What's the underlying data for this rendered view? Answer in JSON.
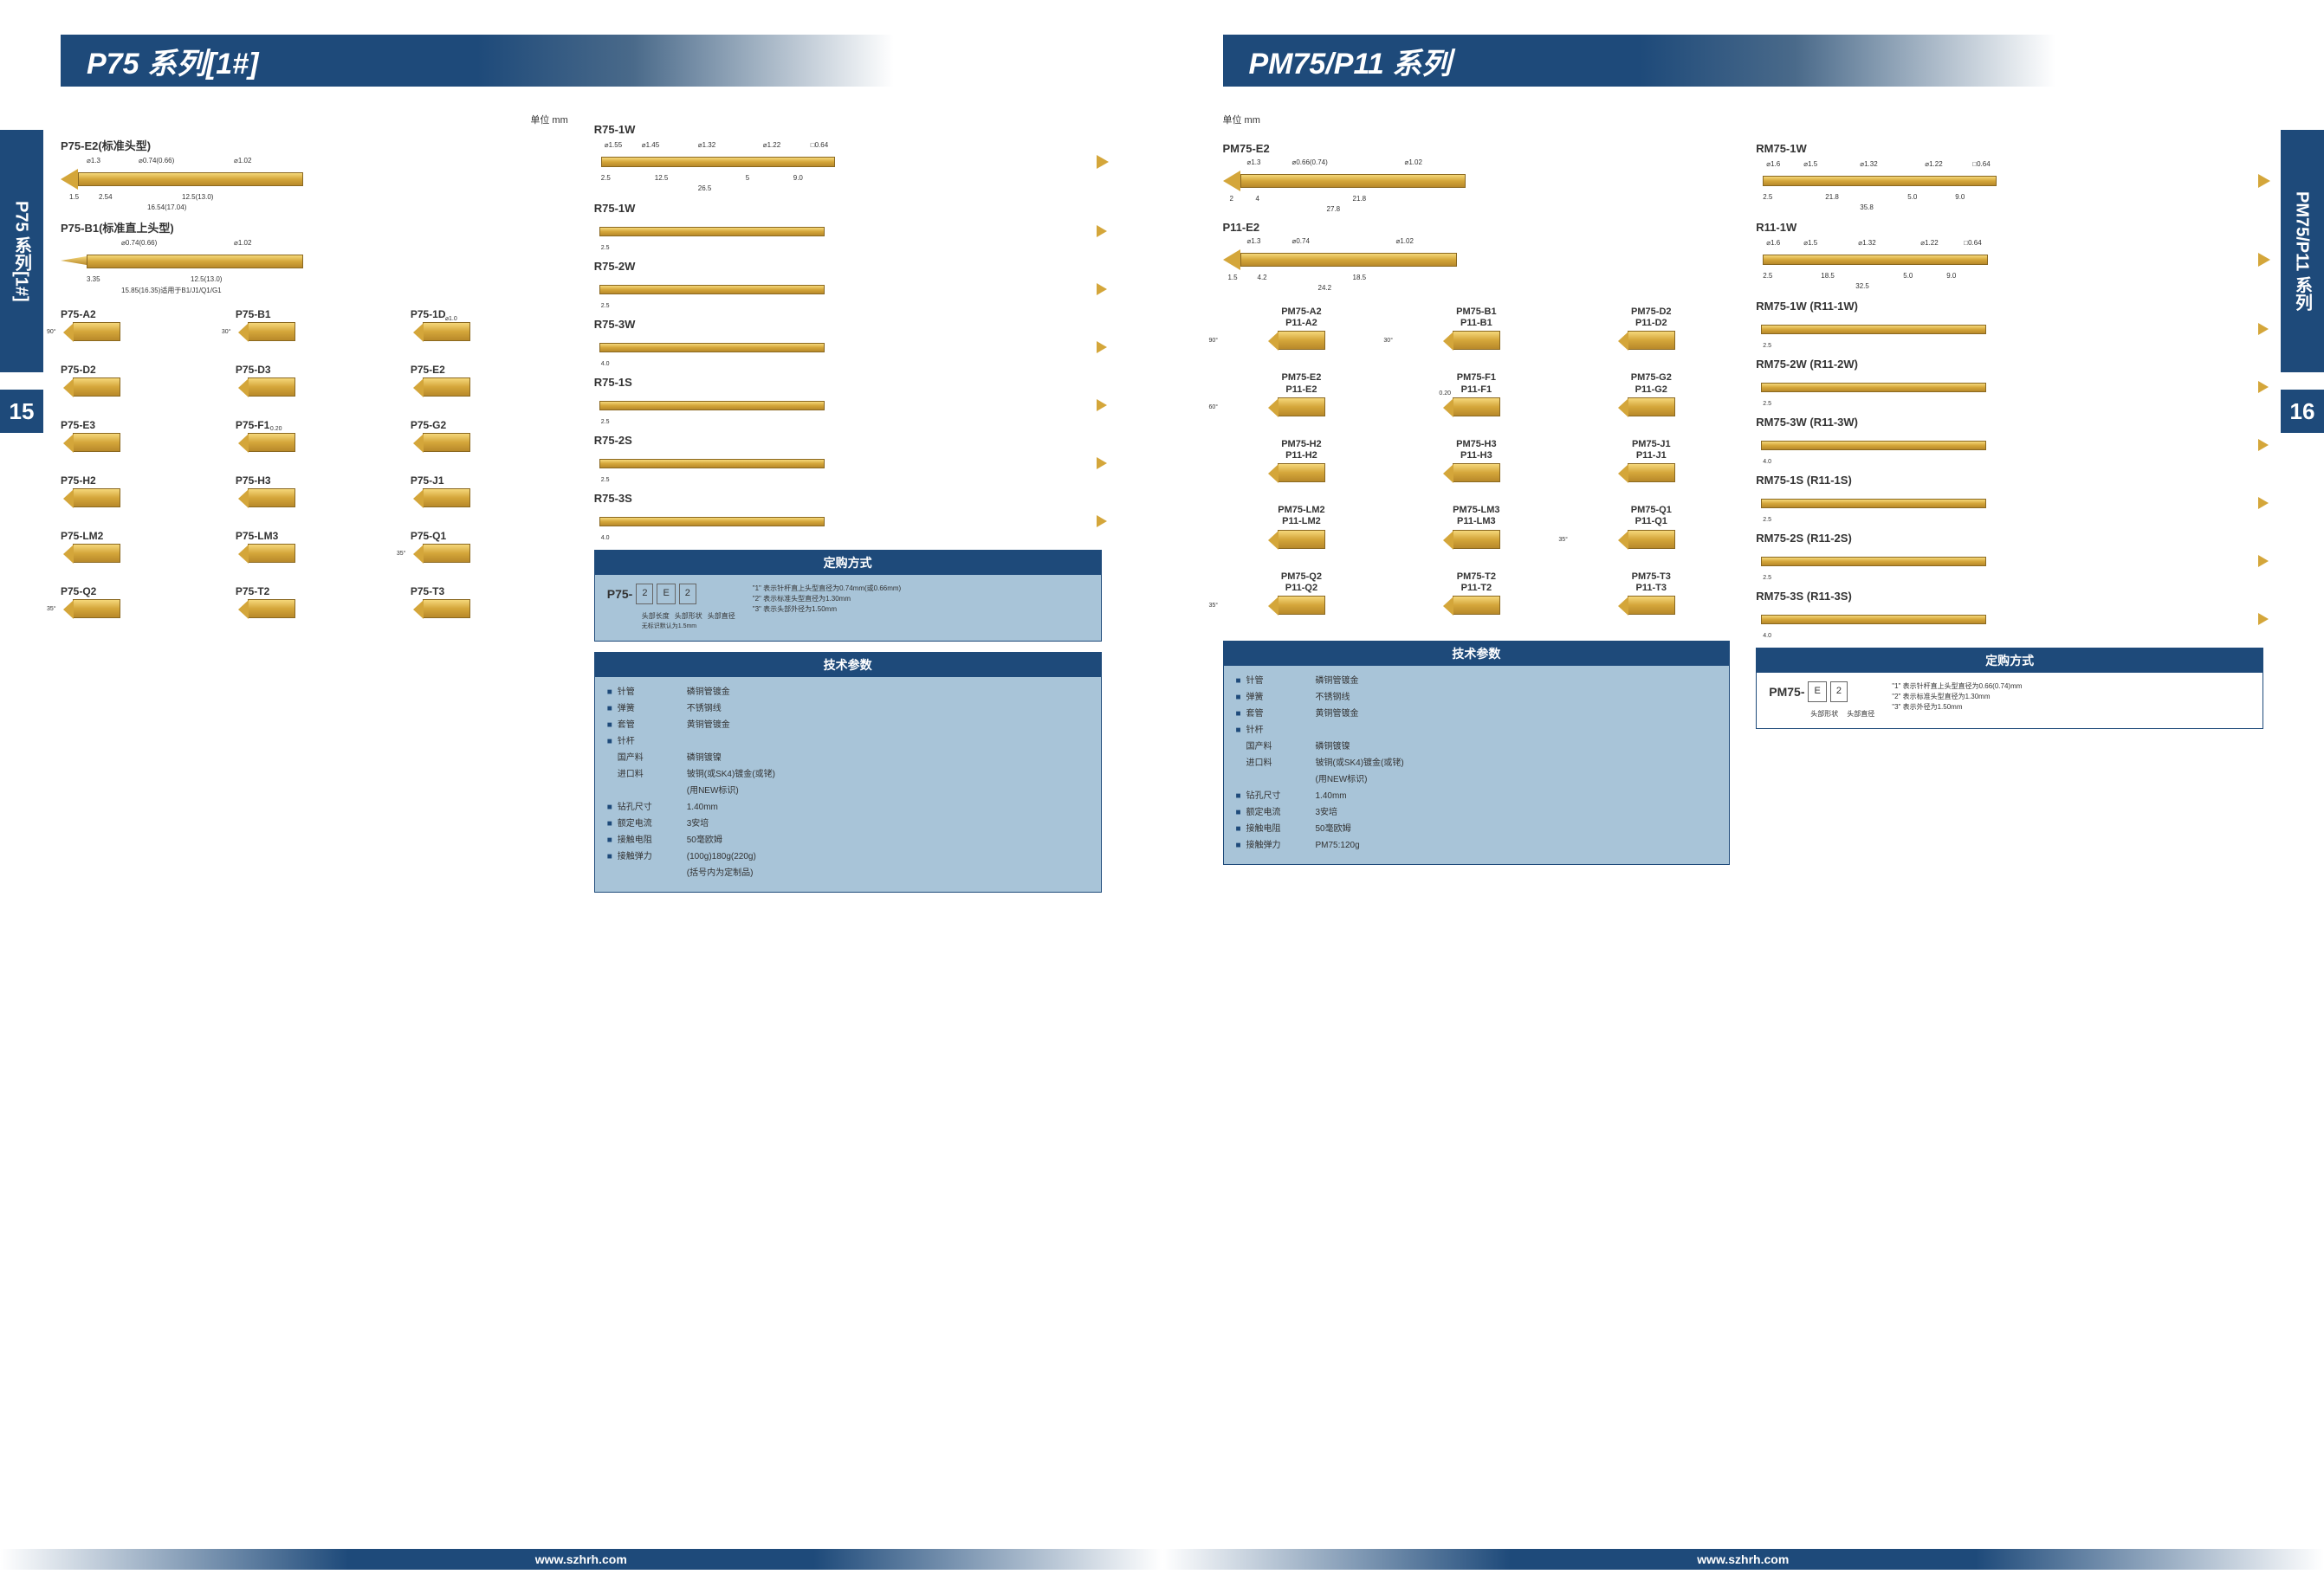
{
  "colors": {
    "primary": "#1e4a7a",
    "gold_light": "#f5d87a",
    "gold_mid": "#d4a63a",
    "gold_dark": "#b8892a",
    "gold_border": "#8a6820",
    "info_bg": "#a8c4d8"
  },
  "left": {
    "side_tab": "P75 系列[1#]",
    "page_num": "15",
    "banner": "P75 系列[1#]",
    "unit": "单位    mm",
    "main_probes": [
      {
        "label": "P75-E2(标准头型)",
        "dims": [
          "⌀1.3",
          "⌀0.74(0.66)",
          "⌀1.02",
          "1.5",
          "2.54",
          "12.5(13.0)",
          "16.54(17.04)"
        ]
      },
      {
        "label": "P75-B1(标准直上头型)",
        "dims": [
          "⌀0.74(0.66)",
          "⌀1.02",
          "3.35",
          "12.5(13.0)",
          "15.85(16.35)适用于B1/J1/Q1/G1"
        ]
      }
    ],
    "tips": [
      {
        "label": "P75-A2",
        "angle": "90°"
      },
      {
        "label": "P75-B1",
        "angle": "30°"
      },
      {
        "label": "P75-1D",
        "dim": "⌀1.0"
      },
      {
        "label": "P75-D2"
      },
      {
        "label": "P75-D3"
      },
      {
        "label": "P75-E2"
      },
      {
        "label": "P75-E3"
      },
      {
        "label": "P75-F1",
        "dim": "0.20"
      },
      {
        "label": "P75-G2"
      },
      {
        "label": "P75-H2"
      },
      {
        "label": "P75-H3"
      },
      {
        "label": "P75-J1"
      },
      {
        "label": "P75-LM2"
      },
      {
        "label": "P75-LM3"
      },
      {
        "label": "P75-Q1",
        "angle": "35°"
      },
      {
        "label": "P75-Q2",
        "angle": "35°"
      },
      {
        "label": "P75-T2"
      },
      {
        "label": "P75-T3"
      }
    ],
    "receptacles_full": {
      "label": "R75-1W",
      "dims": [
        "⌀1.55",
        "⌀1.45",
        "⌀1.32",
        "⌀1.22",
        "□0.64",
        "2.5",
        "12.5",
        "5",
        "9.0",
        "26.5"
      ]
    },
    "receptacles": [
      {
        "label": "R75-1W",
        "ext": "2.5"
      },
      {
        "label": "R75-2W",
        "ext": "2.5"
      },
      {
        "label": "R75-3W",
        "ext": "4.0"
      },
      {
        "label": "R75-1S",
        "ext": "2.5"
      },
      {
        "label": "R75-2S",
        "ext": "2.5"
      },
      {
        "label": "R75-3S",
        "ext": "4.0"
      }
    ],
    "order": {
      "title": "定购方式",
      "prefix": "P75-",
      "boxes": [
        "2",
        "E",
        "2"
      ],
      "sublabels": [
        "头部长度",
        "头部形状",
        "头部直径"
      ],
      "subnote": "无标识默认为1.5mm",
      "notes": [
        "\"1\" 表示针杆直上头型直径为0.74mm(或0.66mm)",
        "\"2\" 表示标准头型直径为1.30mm",
        "\"3\" 表示头部外径为1.50mm"
      ]
    },
    "specs": {
      "title": "技术参数",
      "rows": [
        {
          "k": "针管",
          "v": "磷铜管镀金"
        },
        {
          "k": "弹簧",
          "v": "不锈钢线"
        },
        {
          "k": "套管",
          "v": "黄铜管镀金"
        },
        {
          "k": "针杆",
          "v": ""
        },
        {
          "k": "  国产料",
          "v": "磷铜镀镍"
        },
        {
          "k": "  进口料",
          "v": "铍铜(或SK4)镀金(或铑)"
        },
        {
          "k": "",
          "v": "(用NEW标识)"
        },
        {
          "k": "钻孔尺寸",
          "v": "1.40mm"
        },
        {
          "k": "额定电流",
          "v": "3安培"
        },
        {
          "k": "接触电阻",
          "v": "50毫欧姆"
        },
        {
          "k": "接触弹力",
          "v": "(100g)180g(220g)"
        },
        {
          "k": "",
          "v": "(括号内为定制品)"
        }
      ]
    }
  },
  "right": {
    "side_tab": "PM75/P11 系列",
    "page_num": "16",
    "banner": "PM75/P11 系列",
    "unit": "单位    mm",
    "main_probes": [
      {
        "label": "PM75-E2",
        "dims": [
          "⌀1.3",
          "⌀0.66(0.74)",
          "⌀1.02",
          "2",
          "4",
          "21.8",
          "27.8"
        ]
      },
      {
        "label": "P11-E2",
        "dims": [
          "⌀1.3",
          "⌀0.74",
          "⌀1.02",
          "1.5",
          "4.2",
          "18.5",
          "24.2"
        ]
      }
    ],
    "receptacles_full": [
      {
        "label": "RM75-1W",
        "dims": [
          "⌀1.6",
          "⌀1.5",
          "⌀1.32",
          "⌀1.22",
          "□0.64",
          "2.5",
          "21.8",
          "5.0",
          "9.0",
          "35.8"
        ]
      },
      {
        "label": "R11-1W",
        "dims": [
          "⌀1.6",
          "⌀1.5",
          "⌀1.32",
          "⌀1.22",
          "□0.64",
          "2.5",
          "18.5",
          "5.0",
          "9.0",
          "32.5"
        ]
      }
    ],
    "tips": [
      {
        "l1": "PM75-A2",
        "l2": "P11-A2",
        "angle": "90°"
      },
      {
        "l1": "PM75-B1",
        "l2": "P11-B1",
        "angle": "30°"
      },
      {
        "l1": "PM75-D2",
        "l2": "P11-D2"
      },
      {
        "l1": "PM75-E2",
        "l2": "P11-E2",
        "angle": "60°"
      },
      {
        "l1": "PM75-F1",
        "l2": "P11-F1",
        "dim": "0.20"
      },
      {
        "l1": "PM75-G2",
        "l2": "P11-G2"
      },
      {
        "l1": "PM75-H2",
        "l2": "P11-H2"
      },
      {
        "l1": "PM75-H3",
        "l2": "P11-H3"
      },
      {
        "l1": "PM75-J1",
        "l2": "P11-J1"
      },
      {
        "l1": "PM75-LM2",
        "l2": "P11-LM2"
      },
      {
        "l1": "PM75-LM3",
        "l2": "P11-LM3"
      },
      {
        "l1": "PM75-Q1",
        "l2": "P11-Q1",
        "angle": "35°"
      },
      {
        "l1": "PM75-Q2",
        "l2": "P11-Q2",
        "angle": "35°"
      },
      {
        "l1": "PM75-T2",
        "l2": "P11-T2"
      },
      {
        "l1": "PM75-T3",
        "l2": "P11-T3"
      }
    ],
    "receptacles": [
      {
        "label": "RM75-1W (R11-1W)",
        "ext": "2.5"
      },
      {
        "label": "RM75-2W (R11-2W)",
        "ext": "2.5"
      },
      {
        "label": "RM75-3W (R11-3W)",
        "ext": "4.0"
      },
      {
        "label": "RM75-1S (R11-1S)",
        "ext": "2.5"
      },
      {
        "label": "RM75-2S (R11-2S)",
        "ext": "2.5"
      },
      {
        "label": "RM75-3S (R11-3S)",
        "ext": "4.0"
      }
    ],
    "specs": {
      "title": "技术参数",
      "rows": [
        {
          "k": "针管",
          "v": "磷铜管镀金"
        },
        {
          "k": "弹簧",
          "v": "不锈钢线"
        },
        {
          "k": "套管",
          "v": "黄铜管镀金"
        },
        {
          "k": "针杆",
          "v": ""
        },
        {
          "k": "  国产料",
          "v": "磷铜镀镍"
        },
        {
          "k": "  进口料",
          "v": "铍铜(或SK4)镀金(或铑)"
        },
        {
          "k": "",
          "v": "(用NEW标识)"
        },
        {
          "k": "钻孔尺寸",
          "v": "1.40mm"
        },
        {
          "k": "额定电流",
          "v": "3安培"
        },
        {
          "k": "接触电阻",
          "v": "50毫欧姆"
        },
        {
          "k": "接触弹力",
          "v": "PM75:120g"
        }
      ]
    },
    "order": {
      "title": "定购方式",
      "prefix": "PM75-",
      "boxes": [
        "E",
        "2"
      ],
      "sublabels": [
        "头部形状",
        "头部直径"
      ],
      "notes": [
        "\"1\" 表示针杆直上头型直径为0.66(0.74)mm",
        "\"2\" 表示标准头型直径为1.30mm",
        "\"3\" 表示外径为1.50mm"
      ]
    }
  },
  "footer_url": "www.szhrh.com"
}
